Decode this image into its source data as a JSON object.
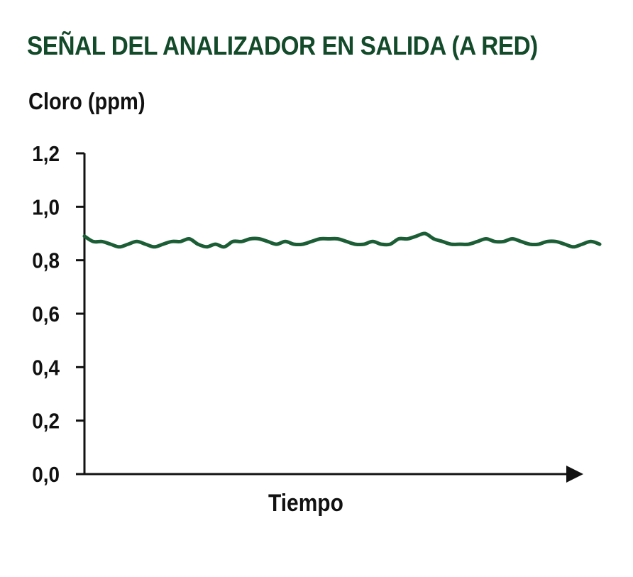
{
  "chart_data": {
    "type": "line",
    "title": "SEÑAL DEL ANALIZADOR EN SALIDA (A RED)",
    "xlabel": "Tiempo",
    "ylabel": "Cloro (ppm)",
    "ylim": [
      0,
      1.2
    ],
    "yticks": [
      "0,0",
      "0,2",
      "0,4",
      "0,6",
      "0,8",
      "1,0",
      "1,2"
    ],
    "ytick_values": [
      0,
      0.2,
      0.4,
      0.6,
      0.8,
      1.0,
      1.2
    ],
    "grid": false,
    "legend": "none",
    "series": [
      {
        "color": "#1b5e35",
        "values": [
          0.89,
          0.87,
          0.87,
          0.86,
          0.85,
          0.86,
          0.87,
          0.86,
          0.85,
          0.86,
          0.87,
          0.87,
          0.88,
          0.86,
          0.85,
          0.86,
          0.85,
          0.87,
          0.87,
          0.88,
          0.88,
          0.87,
          0.86,
          0.87,
          0.86,
          0.86,
          0.87,
          0.88,
          0.88,
          0.88,
          0.87,
          0.86,
          0.86,
          0.87,
          0.86,
          0.86,
          0.88,
          0.88,
          0.89,
          0.9,
          0.88,
          0.87,
          0.86,
          0.86,
          0.86,
          0.87,
          0.88,
          0.87,
          0.87,
          0.88,
          0.87,
          0.86,
          0.86,
          0.87,
          0.87,
          0.86,
          0.85,
          0.86,
          0.87,
          0.86
        ]
      }
    ],
    "colors": {
      "title": "#124a2a",
      "line": "#1b5e35",
      "axis": "#111111"
    }
  }
}
